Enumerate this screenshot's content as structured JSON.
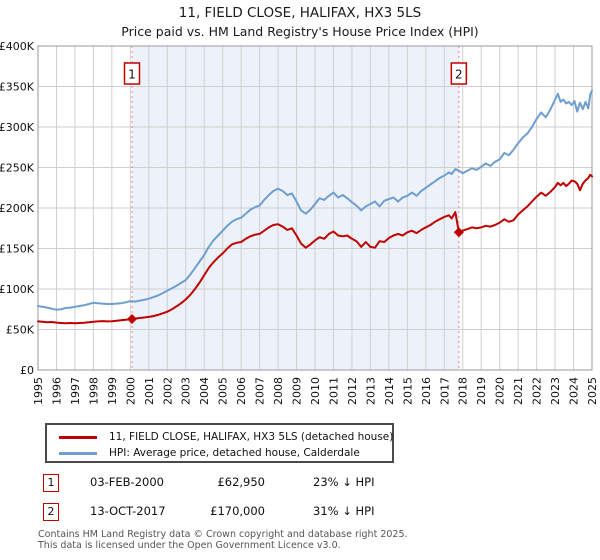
{
  "header": {
    "title": "11, FIELD CLOSE, HALIFAX, HX3 5LS",
    "subtitle": "Price paid vs. HM Land Registry's House Price Index (HPI)"
  },
  "chart_data": {
    "type": "line",
    "title": "11, FIELD CLOSE, HALIFAX, HX3 5LS",
    "subtitle": "Price paid vs. HM Land Registry's House Price Index (HPI)",
    "grid": true,
    "x_axis": {
      "min": 1995,
      "max": 2025,
      "tick_labels": [
        "1995",
        "1996",
        "1997",
        "1998",
        "1999",
        "2000",
        "2001",
        "2002",
        "2003",
        "2004",
        "2005",
        "2006",
        "2007",
        "2008",
        "2009",
        "2010",
        "2011",
        "2012",
        "2013",
        "2014",
        "2015",
        "2016",
        "2017",
        "2018",
        "2019",
        "2020",
        "2021",
        "2022",
        "2023",
        "2024",
        "2025"
      ]
    },
    "y_axis": {
      "min": 0,
      "max": 400000,
      "tick_interval": 50000,
      "tick_labels": [
        "£0",
        "£50K",
        "£100K",
        "£150K",
        "£200K",
        "£250K",
        "£300K",
        "£350K",
        "£400K"
      ]
    },
    "shaded_region": {
      "from": 2000.09,
      "to": 2017.79,
      "color": "#edf2fa"
    },
    "colors": {
      "grid": "#cfcfcf",
      "plot_border": "#9a9a9a",
      "dashed_marker": "#f08080",
      "marker_box_border": "#c00000"
    },
    "markers": [
      {
        "label": "1",
        "x": 2000.09,
        "y": 62950
      },
      {
        "label": "2",
        "x": 2017.79,
        "y": 170000
      }
    ],
    "series": [
      {
        "id": "hpi",
        "name": "HPI: Average price, detached house, Calderdale",
        "color": "#6e9ecf",
        "points": [
          [
            1995.0,
            79000
          ],
          [
            1995.25,
            78000
          ],
          [
            1995.5,
            77000
          ],
          [
            1995.75,
            75500
          ],
          [
            1996.0,
            74500
          ],
          [
            1996.25,
            75000
          ],
          [
            1996.5,
            76500
          ],
          [
            1996.75,
            77000
          ],
          [
            1997.0,
            78000
          ],
          [
            1997.25,
            79000
          ],
          [
            1997.5,
            80000
          ],
          [
            1997.75,
            81500
          ],
          [
            1998.0,
            83000
          ],
          [
            1998.25,
            82500
          ],
          [
            1998.5,
            82000
          ],
          [
            1998.75,
            81500
          ],
          [
            1999.0,
            81500
          ],
          [
            1999.25,
            82000
          ],
          [
            1999.5,
            82500
          ],
          [
            1999.75,
            83500
          ],
          [
            2000.0,
            85000
          ],
          [
            2000.25,
            84500
          ],
          [
            2000.5,
            85500
          ],
          [
            2000.75,
            86500
          ],
          [
            2001.0,
            88000
          ],
          [
            2001.25,
            90000
          ],
          [
            2001.5,
            92000
          ],
          [
            2001.75,
            95000
          ],
          [
            2002.0,
            98000
          ],
          [
            2002.25,
            101000
          ],
          [
            2002.5,
            104000
          ],
          [
            2002.75,
            107500
          ],
          [
            2003.0,
            111000
          ],
          [
            2003.25,
            118000
          ],
          [
            2003.5,
            126000
          ],
          [
            2003.75,
            134000
          ],
          [
            2004.0,
            142000
          ],
          [
            2004.25,
            152000
          ],
          [
            2004.5,
            160000
          ],
          [
            2004.75,
            166000
          ],
          [
            2005.0,
            172000
          ],
          [
            2005.25,
            178000
          ],
          [
            2005.5,
            183000
          ],
          [
            2005.75,
            186000
          ],
          [
            2006.0,
            188000
          ],
          [
            2006.25,
            193000
          ],
          [
            2006.5,
            198000
          ],
          [
            2006.75,
            201000
          ],
          [
            2007.0,
            203000
          ],
          [
            2007.25,
            210000
          ],
          [
            2007.5,
            216000
          ],
          [
            2007.75,
            221000
          ],
          [
            2008.0,
            224000
          ],
          [
            2008.25,
            221000
          ],
          [
            2008.5,
            216000
          ],
          [
            2008.75,
            218000
          ],
          [
            2009.0,
            208000
          ],
          [
            2009.25,
            197000
          ],
          [
            2009.5,
            193000
          ],
          [
            2009.75,
            198000
          ],
          [
            2010.0,
            205000
          ],
          [
            2010.25,
            212000
          ],
          [
            2010.5,
            210000
          ],
          [
            2010.75,
            215000
          ],
          [
            2011.0,
            219000
          ],
          [
            2011.25,
            213000
          ],
          [
            2011.5,
            216000
          ],
          [
            2011.75,
            212000
          ],
          [
            2012.0,
            207000
          ],
          [
            2012.25,
            203000
          ],
          [
            2012.5,
            197000
          ],
          [
            2012.75,
            202000
          ],
          [
            2013.0,
            205000
          ],
          [
            2013.25,
            208000
          ],
          [
            2013.5,
            202000
          ],
          [
            2013.75,
            209000
          ],
          [
            2014.0,
            211000
          ],
          [
            2014.25,
            213000
          ],
          [
            2014.5,
            208000
          ],
          [
            2014.75,
            213000
          ],
          [
            2015.0,
            215000
          ],
          [
            2015.25,
            219000
          ],
          [
            2015.5,
            215000
          ],
          [
            2015.75,
            221000
          ],
          [
            2016.0,
            225000
          ],
          [
            2016.25,
            229000
          ],
          [
            2016.5,
            233000
          ],
          [
            2016.75,
            237000
          ],
          [
            2017.0,
            240000
          ],
          [
            2017.25,
            244000
          ],
          [
            2017.4,
            242000
          ],
          [
            2017.6,
            248000
          ],
          [
            2017.79,
            246000
          ],
          [
            2018.0,
            243000
          ],
          [
            2018.25,
            246000
          ],
          [
            2018.5,
            249000
          ],
          [
            2018.75,
            247000
          ],
          [
            2019.0,
            251000
          ],
          [
            2019.25,
            255000
          ],
          [
            2019.5,
            252000
          ],
          [
            2019.75,
            257000
          ],
          [
            2020.0,
            260000
          ],
          [
            2020.25,
            268000
          ],
          [
            2020.5,
            265000
          ],
          [
            2020.75,
            272000
          ],
          [
            2021.0,
            280000
          ],
          [
            2021.25,
            287000
          ],
          [
            2021.5,
            292000
          ],
          [
            2021.75,
            300000
          ],
          [
            2022.0,
            310000
          ],
          [
            2022.25,
            318000
          ],
          [
            2022.5,
            312000
          ],
          [
            2022.75,
            322000
          ],
          [
            2023.0,
            334000
          ],
          [
            2023.15,
            341000
          ],
          [
            2023.3,
            331000
          ],
          [
            2023.45,
            334000
          ],
          [
            2023.6,
            329000
          ],
          [
            2023.75,
            331000
          ],
          [
            2023.9,
            327000
          ],
          [
            2024.05,
            332000
          ],
          [
            2024.2,
            319000
          ],
          [
            2024.35,
            330000
          ],
          [
            2024.5,
            322000
          ],
          [
            2024.65,
            331000
          ],
          [
            2024.8,
            323000
          ],
          [
            2024.9,
            340000
          ],
          [
            2025.0,
            345000
          ]
        ]
      },
      {
        "id": "price",
        "name": "11, FIELD CLOSE, HALIFAX, HX3 5LS (detached house)",
        "color": "#c00000",
        "points": [
          [
            1995.0,
            60000
          ],
          [
            1995.25,
            59500
          ],
          [
            1995.5,
            59000
          ],
          [
            1995.75,
            59300
          ],
          [
            1996.0,
            58500
          ],
          [
            1996.25,
            58000
          ],
          [
            1996.5,
            57600
          ],
          [
            1996.75,
            58000
          ],
          [
            1997.0,
            57600
          ],
          [
            1997.25,
            58000
          ],
          [
            1997.5,
            58400
          ],
          [
            1997.75,
            59000
          ],
          [
            1998.0,
            59500
          ],
          [
            1998.25,
            60000
          ],
          [
            1998.5,
            60400
          ],
          [
            1998.75,
            60000
          ],
          [
            1999.0,
            60300
          ],
          [
            1999.25,
            60800
          ],
          [
            1999.5,
            61400
          ],
          [
            1999.75,
            62000
          ],
          [
            2000.09,
            62950
          ],
          [
            2000.25,
            63500
          ],
          [
            2000.5,
            64200
          ],
          [
            2000.75,
            64800
          ],
          [
            2001.0,
            65500
          ],
          [
            2001.25,
            66500
          ],
          [
            2001.5,
            68000
          ],
          [
            2001.75,
            70000
          ],
          [
            2002.0,
            72000
          ],
          [
            2002.25,
            75000
          ],
          [
            2002.5,
            78500
          ],
          [
            2002.75,
            82500
          ],
          [
            2003.0,
            87000
          ],
          [
            2003.25,
            93000
          ],
          [
            2003.5,
            100000
          ],
          [
            2003.75,
            108000
          ],
          [
            2004.0,
            117000
          ],
          [
            2004.25,
            126000
          ],
          [
            2004.5,
            133000
          ],
          [
            2004.75,
            139000
          ],
          [
            2005.0,
            144000
          ],
          [
            2005.25,
            150000
          ],
          [
            2005.5,
            155000
          ],
          [
            2005.75,
            157000
          ],
          [
            2006.0,
            158000
          ],
          [
            2006.25,
            162000
          ],
          [
            2006.5,
            165000
          ],
          [
            2006.75,
            167000
          ],
          [
            2007.0,
            168000
          ],
          [
            2007.25,
            172000
          ],
          [
            2007.5,
            176000
          ],
          [
            2007.75,
            179000
          ],
          [
            2008.0,
            180000
          ],
          [
            2008.25,
            177000
          ],
          [
            2008.5,
            173000
          ],
          [
            2008.75,
            175000
          ],
          [
            2009.0,
            166000
          ],
          [
            2009.25,
            156000
          ],
          [
            2009.5,
            151000
          ],
          [
            2009.75,
            155000
          ],
          [
            2010.0,
            160000
          ],
          [
            2010.25,
            164000
          ],
          [
            2010.5,
            162000
          ],
          [
            2010.75,
            168000
          ],
          [
            2011.0,
            171000
          ],
          [
            2011.25,
            166000
          ],
          [
            2011.5,
            165000
          ],
          [
            2011.75,
            166000
          ],
          [
            2012.0,
            162000
          ],
          [
            2012.25,
            159000
          ],
          [
            2012.5,
            152000
          ],
          [
            2012.75,
            158000
          ],
          [
            2013.0,
            152000
          ],
          [
            2013.25,
            151000
          ],
          [
            2013.5,
            159000
          ],
          [
            2013.75,
            158000
          ],
          [
            2014.0,
            163000
          ],
          [
            2014.25,
            166000
          ],
          [
            2014.5,
            168000
          ],
          [
            2014.75,
            166000
          ],
          [
            2015.0,
            170000
          ],
          [
            2015.25,
            172000
          ],
          [
            2015.5,
            169000
          ],
          [
            2015.75,
            173000
          ],
          [
            2016.0,
            176000
          ],
          [
            2016.25,
            179000
          ],
          [
            2016.5,
            183000
          ],
          [
            2016.75,
            186000
          ],
          [
            2017.0,
            189000
          ],
          [
            2017.25,
            191000
          ],
          [
            2017.4,
            187000
          ],
          [
            2017.6,
            195000
          ],
          [
            2017.79,
            170000
          ],
          [
            2018.0,
            172000
          ],
          [
            2018.25,
            174000
          ],
          [
            2018.5,
            176000
          ],
          [
            2018.75,
            175000
          ],
          [
            2019.0,
            176000
          ],
          [
            2019.25,
            178000
          ],
          [
            2019.5,
            177000
          ],
          [
            2019.75,
            179000
          ],
          [
            2020.0,
            182000
          ],
          [
            2020.25,
            186000
          ],
          [
            2020.5,
            183000
          ],
          [
            2020.75,
            185000
          ],
          [
            2021.0,
            192000
          ],
          [
            2021.25,
            197000
          ],
          [
            2021.5,
            202000
          ],
          [
            2021.75,
            208000
          ],
          [
            2022.0,
            214000
          ],
          [
            2022.25,
            219000
          ],
          [
            2022.5,
            215000
          ],
          [
            2022.75,
            220000
          ],
          [
            2023.0,
            226000
          ],
          [
            2023.15,
            231000
          ],
          [
            2023.3,
            228000
          ],
          [
            2023.45,
            231000
          ],
          [
            2023.6,
            227000
          ],
          [
            2023.75,
            230000
          ],
          [
            2023.9,
            234000
          ],
          [
            2024.05,
            233000
          ],
          [
            2024.2,
            230000
          ],
          [
            2024.35,
            222000
          ],
          [
            2024.5,
            230000
          ],
          [
            2024.65,
            234000
          ],
          [
            2024.8,
            237000
          ],
          [
            2024.9,
            241000
          ],
          [
            2025.0,
            239000
          ]
        ]
      }
    ]
  },
  "legend": {
    "items": [
      {
        "label": "11, FIELD CLOSE, HALIFAX, HX3 5LS (detached house)",
        "color": "#c00000"
      },
      {
        "label": "HPI: Average price, detached house, Calderdale",
        "color": "#6e9ecf"
      }
    ]
  },
  "sales": [
    {
      "num": "1",
      "date": "03-FEB-2000",
      "price": "£62,950",
      "vs_hpi": "23% ↓ HPI"
    },
    {
      "num": "2",
      "date": "13-OCT-2017",
      "price": "£170,000",
      "vs_hpi": "31% ↓ HPI"
    }
  ],
  "footer": {
    "line1": "Contains HM Land Registry data © Crown copyright and database right 2025.",
    "line2": "This data is licensed under the Open Government Licence v3.0."
  }
}
